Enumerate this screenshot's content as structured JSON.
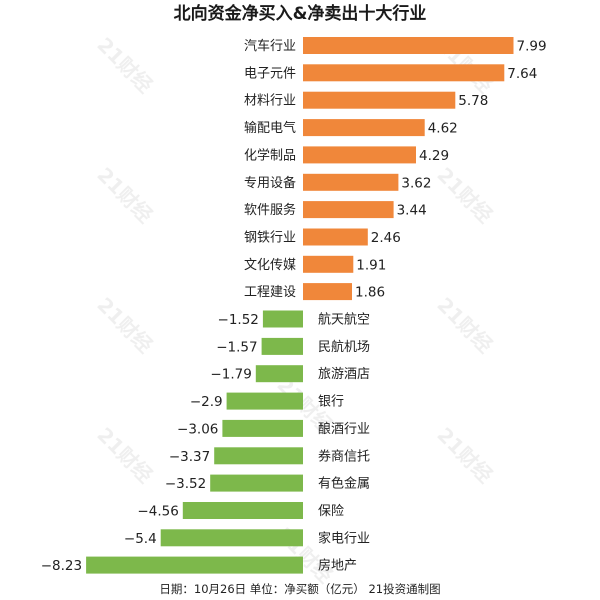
{
  "chart_data": {
    "type": "bar",
    "orientation": "horizontal",
    "title": "北向资金净买入&净卖出十大行业",
    "categories": [
      "汽车行业",
      "电子元件",
      "材料行业",
      "输配电气",
      "化学制品",
      "专用设备",
      "软件服务",
      "钢铁行业",
      "文化传媒",
      "工程建设",
      "航天航空",
      "民航机场",
      "旅游酒店",
      "银行",
      "酿酒行业",
      "券商信托",
      "有色金属",
      "保险",
      "家电行业",
      "房地产"
    ],
    "values": [
      7.99,
      7.64,
      5.78,
      4.62,
      4.29,
      3.62,
      3.44,
      2.46,
      1.91,
      1.86,
      -1.52,
      -1.57,
      -1.79,
      -2.9,
      -3.06,
      -3.37,
      -3.52,
      -4.56,
      -5.4,
      -8.23
    ],
    "value_labels": [
      "7.99",
      "7.64",
      "5.78",
      "4.62",
      "4.29",
      "3.62",
      "3.44",
      "2.46",
      "1.91",
      "1.86",
      "−1.52",
      "−1.57",
      "−1.79",
      "−2.9",
      "−3.06",
      "−3.37",
      "−3.52",
      "−4.56",
      "−5.4",
      "−8.23"
    ],
    "positive_color": "#F0873A",
    "negative_color": "#7DB84B",
    "footer": "日期：10月26日 单位：净买额（亿元） 21投资通制图",
    "watermark": "21财经",
    "grid": false,
    "legend": "none"
  }
}
